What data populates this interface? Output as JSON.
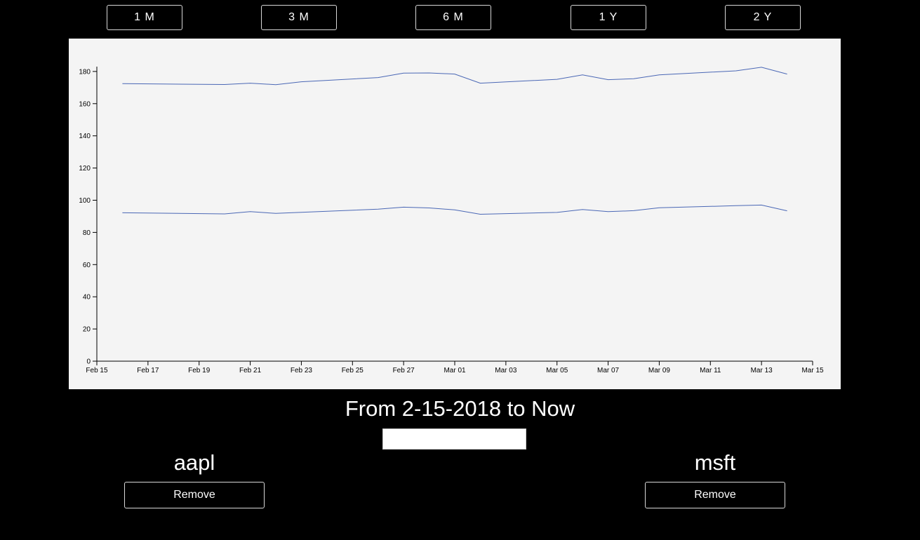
{
  "range_buttons": [
    {
      "label": "1 M"
    },
    {
      "label": "3 M"
    },
    {
      "label": "6 M"
    },
    {
      "label": "1 Y"
    },
    {
      "label": "2 Y"
    }
  ],
  "range_text": "From 2-15-2018 to Now",
  "ticker_input": {
    "value": "",
    "placeholder": ""
  },
  "stocks": [
    {
      "name": "aapl",
      "remove_label": "Remove"
    },
    {
      "name": "msft",
      "remove_label": "Remove"
    }
  ],
  "colors": {
    "background": "#000000",
    "chart_background": "#f4f4f4",
    "line": "#4a67b5"
  },
  "chart_data": {
    "type": "line",
    "title": "",
    "xlabel": "",
    "ylabel": "",
    "x_ticks": [
      "Feb 15",
      "Feb 17",
      "Feb 19",
      "Feb 21",
      "Feb 23",
      "Feb 25",
      "Feb 27",
      "Mar 01",
      "Mar 03",
      "Mar 05",
      "Mar 07",
      "Mar 09",
      "Mar 11",
      "Mar 13",
      "Mar 15"
    ],
    "y_ticks": [
      0,
      20,
      40,
      60,
      80,
      100,
      120,
      140,
      160,
      180
    ],
    "ylim": [
      0,
      183
    ],
    "xlim": [
      "2018-02-15",
      "2018-03-15"
    ],
    "grid": false,
    "series": [
      {
        "x": [
          "2018-02-16",
          "2018-02-20",
          "2018-02-21",
          "2018-02-22",
          "2018-02-23",
          "2018-02-26",
          "2018-02-27",
          "2018-02-28",
          "2018-03-01",
          "2018-03-02",
          "2018-03-05",
          "2018-03-06",
          "2018-03-07",
          "2018-03-08",
          "2018-03-09",
          "2018-03-12",
          "2018-03-13",
          "2018-03-14"
        ],
        "y": [
          172.4,
          171.9,
          172.7,
          171.8,
          173.6,
          176.2,
          179.0,
          179.1,
          178.4,
          172.7,
          175.1,
          177.9,
          174.9,
          175.5,
          177.9,
          180.4,
          182.6,
          178.4
        ]
      },
      {
        "x": [
          "2018-02-16",
          "2018-02-20",
          "2018-02-21",
          "2018-02-22",
          "2018-02-23",
          "2018-02-26",
          "2018-02-27",
          "2018-02-28",
          "2018-03-01",
          "2018-03-02",
          "2018-03-05",
          "2018-03-06",
          "2018-03-07",
          "2018-03-08",
          "2018-03-09",
          "2018-03-12",
          "2018-03-13",
          "2018-03-14"
        ],
        "y": [
          92.2,
          91.5,
          92.9,
          91.8,
          92.5,
          94.4,
          95.7,
          95.2,
          94.0,
          91.3,
          92.4,
          94.2,
          92.9,
          93.5,
          95.3,
          96.6,
          97.0,
          93.4
        ]
      }
    ]
  }
}
